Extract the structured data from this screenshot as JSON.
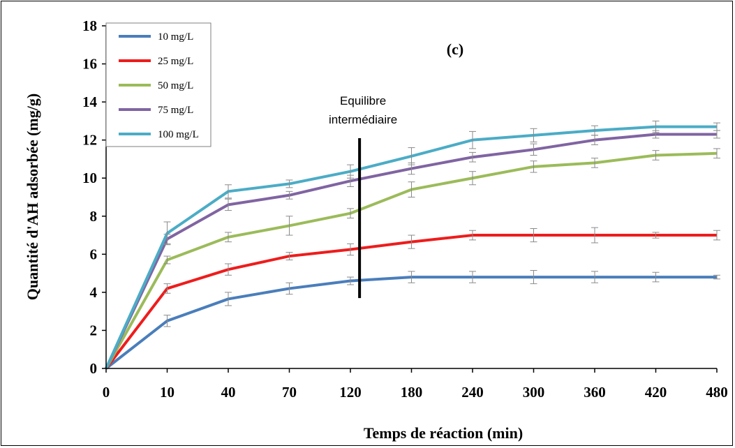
{
  "chart_data": {
    "type": "line",
    "title": "(c)",
    "xlabel": "Temps de réaction (min)",
    "ylabel": "Quantité d'AH adsorbée (mg/g)",
    "x": [
      "0",
      "10",
      "40",
      "70",
      "120",
      "180",
      "240",
      "300",
      "360",
      "420",
      "480"
    ],
    "ylim": [
      0,
      18
    ],
    "yticks": [
      "0",
      "2",
      "4",
      "6",
      "8",
      "10",
      "12",
      "14",
      "16",
      "18"
    ],
    "grid": false,
    "legend": "top-left",
    "series": [
      {
        "name": "10 mg/L",
        "color": "#4a7ebb",
        "values": [
          0,
          2.5,
          3.65,
          4.2,
          4.6,
          4.8,
          4.8,
          4.8,
          4.8,
          4.8,
          4.8
        ],
        "errors": [
          0,
          0.3,
          0.35,
          0.3,
          0.2,
          0.3,
          0.3,
          0.35,
          0.3,
          0.25,
          0.1
        ]
      },
      {
        "name": "25 mg/L",
        "color": "#ee1c1c",
        "values": [
          0,
          4.2,
          5.2,
          5.9,
          6.25,
          6.65,
          7.0,
          7.0,
          7.0,
          7.0,
          7.0
        ],
        "errors": [
          0,
          0.25,
          0.3,
          0.2,
          0.3,
          0.35,
          0.25,
          0.35,
          0.4,
          0.15,
          0.25
        ]
      },
      {
        "name": "50 mg/L",
        "color": "#9bbb59",
        "values": [
          0,
          5.7,
          6.9,
          7.5,
          8.15,
          9.4,
          10.0,
          10.6,
          10.8,
          11.2,
          11.3
        ],
        "errors": [
          0,
          0.2,
          0.25,
          0.5,
          0.25,
          0.4,
          0.35,
          0.3,
          0.25,
          0.25,
          0.25
        ]
      },
      {
        "name": "75 mg/L",
        "color": "#8064a2",
        "values": [
          0,
          6.8,
          8.6,
          9.1,
          9.85,
          10.5,
          11.1,
          11.5,
          12.0,
          12.3,
          12.3
        ],
        "errors": [
          0,
          0.25,
          0.3,
          0.2,
          0.3,
          0.3,
          0.25,
          0.3,
          0.25,
          0.2,
          0.2
        ]
      },
      {
        "name": "100 mg/L",
        "color": "#4bacc6",
        "values": [
          0,
          7.1,
          9.3,
          9.7,
          10.35,
          11.15,
          12.0,
          12.25,
          12.5,
          12.7,
          12.7
        ],
        "errors": [
          0,
          0.6,
          0.35,
          0.2,
          0.35,
          0.45,
          0.45,
          0.35,
          0.25,
          0.3,
          0.2
        ]
      }
    ],
    "annotation": {
      "lines": [
        "Equilibre",
        "intermédiaire"
      ],
      "x_between": [
        4,
        5
      ],
      "x_fraction": 0.15,
      "y_range": [
        3.7,
        12.1
      ]
    }
  }
}
